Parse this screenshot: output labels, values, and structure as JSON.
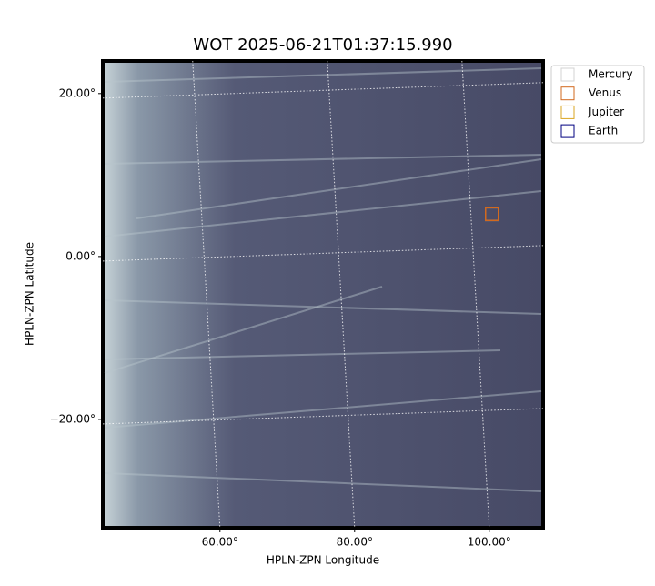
{
  "chart_data": {
    "type": "image",
    "title": "WOT 2025-06-21T01:37:15.990",
    "x_label": "HPLN-ZPN Longitude",
    "y_label": "HPLN-ZPN Latitude",
    "xlim": [
      42.6,
      108
    ],
    "ylim": [
      -33.3,
      24
    ],
    "xticks": [
      {
        "value": 60,
        "label": "60.00°"
      },
      {
        "value": 80,
        "label": "80.00°"
      },
      {
        "value": 100,
        "label": "100.00°"
      }
    ],
    "yticks": [
      {
        "value": -20,
        "label": "−20.00°"
      },
      {
        "value": 0,
        "label": "0.00°"
      },
      {
        "value": 20,
        "label": "20.00°"
      }
    ],
    "grid": true,
    "legend": "outside upper right",
    "series": [
      {
        "name": "Mercury",
        "color": "#d3d3d3",
        "x": [
          100.4
        ],
        "y": [
          5.2
        ]
      },
      {
        "name": "Venus",
        "color": "#d2691e",
        "x": [
          100.4
        ],
        "y": [
          5.2
        ]
      },
      {
        "name": "Jupiter",
        "color": "#daa520",
        "x": [],
        "y": []
      },
      {
        "name": "Earth",
        "color": "#000080",
        "x": [],
        "y": []
      }
    ]
  }
}
